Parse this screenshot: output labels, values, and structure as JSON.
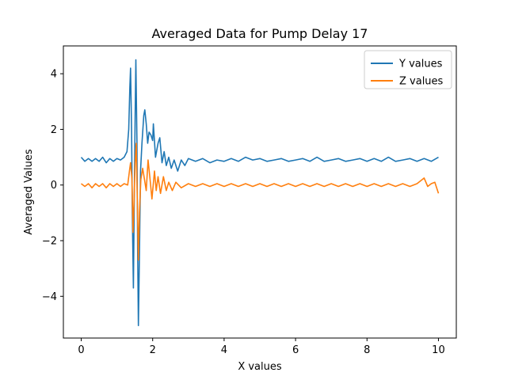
{
  "chart_data": {
    "type": "line",
    "title": "Averaged Data for Pump Delay 17",
    "xlabel": "X values",
    "ylabel": "Averaged Values",
    "xlim": [
      -0.5,
      10.5
    ],
    "ylim": [
      -5.5,
      5.0
    ],
    "xticks": [
      0,
      2,
      4,
      6,
      8,
      10
    ],
    "xtick_labels": [
      "0",
      "2",
      "4",
      "6",
      "8",
      "10"
    ],
    "yticks": [
      -4,
      -2,
      0,
      2,
      4
    ],
    "ytick_labels": [
      "−4",
      "−2",
      "0",
      "2",
      "4"
    ],
    "grid": false,
    "legend_position": "top-right",
    "series": [
      {
        "name": "Y values",
        "color": "#1f77b4",
        "points": [
          [
            0.0,
            1.0
          ],
          [
            0.1,
            0.85
          ],
          [
            0.2,
            0.95
          ],
          [
            0.3,
            0.85
          ],
          [
            0.4,
            0.95
          ],
          [
            0.5,
            0.85
          ],
          [
            0.6,
            1.0
          ],
          [
            0.7,
            0.8
          ],
          [
            0.8,
            0.95
          ],
          [
            0.9,
            0.85
          ],
          [
            1.0,
            0.95
          ],
          [
            1.1,
            0.9
          ],
          [
            1.2,
            1.0
          ],
          [
            1.28,
            1.2
          ],
          [
            1.33,
            2.0
          ],
          [
            1.36,
            3.5
          ],
          [
            1.38,
            4.2
          ],
          [
            1.41,
            2.0
          ],
          [
            1.43,
            -1.0
          ],
          [
            1.46,
            -3.7
          ],
          [
            1.48,
            -1.0
          ],
          [
            1.51,
            2.5
          ],
          [
            1.53,
            4.5
          ],
          [
            1.56,
            1.5
          ],
          [
            1.58,
            -2.5
          ],
          [
            1.6,
            -5.05
          ],
          [
            1.63,
            -2.5
          ],
          [
            1.66,
            0.5
          ],
          [
            1.7,
            1.5
          ],
          [
            1.75,
            2.5
          ],
          [
            1.78,
            2.7
          ],
          [
            1.82,
            2.2
          ],
          [
            1.86,
            1.5
          ],
          [
            1.9,
            1.9
          ],
          [
            1.95,
            1.8
          ],
          [
            2.0,
            1.6
          ],
          [
            2.02,
            2.2
          ],
          [
            2.08,
            1.0
          ],
          [
            2.15,
            1.5
          ],
          [
            2.2,
            1.7
          ],
          [
            2.26,
            0.8
          ],
          [
            2.32,
            1.2
          ],
          [
            2.38,
            0.7
          ],
          [
            2.45,
            1.0
          ],
          [
            2.52,
            0.6
          ],
          [
            2.6,
            0.9
          ],
          [
            2.7,
            0.5
          ],
          [
            2.8,
            0.9
          ],
          [
            2.9,
            0.7
          ],
          [
            3.0,
            0.95
          ],
          [
            3.2,
            0.85
          ],
          [
            3.4,
            0.95
          ],
          [
            3.6,
            0.8
          ],
          [
            3.8,
            0.9
          ],
          [
            4.0,
            0.85
          ],
          [
            4.2,
            0.95
          ],
          [
            4.4,
            0.85
          ],
          [
            4.6,
            1.0
          ],
          [
            4.8,
            0.9
          ],
          [
            5.0,
            0.95
          ],
          [
            5.2,
            0.85
          ],
          [
            5.4,
            0.9
          ],
          [
            5.6,
            0.95
          ],
          [
            5.8,
            0.85
          ],
          [
            6.0,
            0.9
          ],
          [
            6.2,
            0.95
          ],
          [
            6.4,
            0.85
          ],
          [
            6.6,
            1.0
          ],
          [
            6.8,
            0.85
          ],
          [
            7.0,
            0.9
          ],
          [
            7.2,
            0.95
          ],
          [
            7.4,
            0.85
          ],
          [
            7.6,
            0.9
          ],
          [
            7.8,
            0.95
          ],
          [
            8.0,
            0.85
          ],
          [
            8.2,
            0.95
          ],
          [
            8.4,
            0.85
          ],
          [
            8.6,
            1.0
          ],
          [
            8.8,
            0.85
          ],
          [
            9.0,
            0.9
          ],
          [
            9.2,
            0.95
          ],
          [
            9.4,
            0.85
          ],
          [
            9.6,
            0.95
          ],
          [
            9.8,
            0.85
          ],
          [
            10.0,
            1.0
          ]
        ]
      },
      {
        "name": "Z values",
        "color": "#ff7f0e",
        "points": [
          [
            0.0,
            0.05
          ],
          [
            0.1,
            -0.05
          ],
          [
            0.2,
            0.05
          ],
          [
            0.3,
            -0.1
          ],
          [
            0.4,
            0.05
          ],
          [
            0.5,
            -0.05
          ],
          [
            0.6,
            0.05
          ],
          [
            0.7,
            -0.1
          ],
          [
            0.8,
            0.05
          ],
          [
            0.9,
            -0.05
          ],
          [
            1.0,
            0.05
          ],
          [
            1.1,
            -0.05
          ],
          [
            1.2,
            0.05
          ],
          [
            1.3,
            0.0
          ],
          [
            1.35,
            0.5
          ],
          [
            1.38,
            0.8
          ],
          [
            1.42,
            0.2
          ],
          [
            1.45,
            -1.7
          ],
          [
            1.48,
            -0.5
          ],
          [
            1.51,
            0.8
          ],
          [
            1.54,
            1.5
          ],
          [
            1.57,
            -0.5
          ],
          [
            1.6,
            -2.7
          ],
          [
            1.63,
            -1.0
          ],
          [
            1.67,
            0.2
          ],
          [
            1.72,
            0.6
          ],
          [
            1.77,
            0.2
          ],
          [
            1.82,
            -0.2
          ],
          [
            1.87,
            0.9
          ],
          [
            1.92,
            0.3
          ],
          [
            1.98,
            -0.5
          ],
          [
            2.05,
            0.5
          ],
          [
            2.1,
            -0.2
          ],
          [
            2.15,
            0.3
          ],
          [
            2.22,
            -0.3
          ],
          [
            2.3,
            0.3
          ],
          [
            2.38,
            -0.2
          ],
          [
            2.45,
            0.1
          ],
          [
            2.55,
            -0.2
          ],
          [
            2.65,
            0.1
          ],
          [
            2.8,
            -0.1
          ],
          [
            3.0,
            0.05
          ],
          [
            3.2,
            -0.05
          ],
          [
            3.4,
            0.05
          ],
          [
            3.6,
            -0.05
          ],
          [
            3.8,
            0.05
          ],
          [
            4.0,
            -0.05
          ],
          [
            4.2,
            0.05
          ],
          [
            4.4,
            -0.05
          ],
          [
            4.6,
            0.05
          ],
          [
            4.8,
            -0.05
          ],
          [
            5.0,
            0.05
          ],
          [
            5.2,
            -0.05
          ],
          [
            5.4,
            0.05
          ],
          [
            5.6,
            -0.05
          ],
          [
            5.8,
            0.05
          ],
          [
            6.0,
            -0.05
          ],
          [
            6.2,
            0.05
          ],
          [
            6.4,
            -0.05
          ],
          [
            6.6,
            0.05
          ],
          [
            6.8,
            -0.05
          ],
          [
            7.0,
            0.05
          ],
          [
            7.2,
            -0.05
          ],
          [
            7.4,
            0.05
          ],
          [
            7.6,
            -0.05
          ],
          [
            7.8,
            0.05
          ],
          [
            8.0,
            -0.05
          ],
          [
            8.2,
            0.05
          ],
          [
            8.4,
            -0.05
          ],
          [
            8.6,
            0.05
          ],
          [
            8.8,
            -0.05
          ],
          [
            9.0,
            0.05
          ],
          [
            9.2,
            -0.05
          ],
          [
            9.4,
            0.05
          ],
          [
            9.6,
            0.25
          ],
          [
            9.7,
            -0.05
          ],
          [
            9.8,
            0.05
          ],
          [
            9.9,
            0.1
          ],
          [
            10.0,
            -0.3
          ]
        ]
      }
    ]
  }
}
